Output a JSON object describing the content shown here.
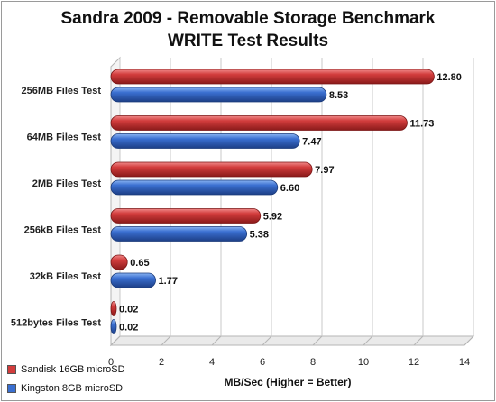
{
  "chart_data": {
    "type": "bar",
    "orientation": "horizontal",
    "title": "Sandra 2009 - Removable Storage Benchmark",
    "subtitle": "WRITE Test Results",
    "xlabel": "MB/Sec (Higher = Better)",
    "ylabel": "",
    "xlim": [
      0,
      14
    ],
    "xticks": [
      "0",
      "2",
      "4",
      "6",
      "8",
      "10",
      "12",
      "14"
    ],
    "categories": [
      "256MB Files Test",
      "64MB Files Test",
      "2MB Files Test",
      "256kB Files Test",
      "32kB Files Test",
      "512bytes Files Test"
    ],
    "series": [
      {
        "name": "Sandisk 16GB microSD",
        "color": "#d23c3c",
        "values": [
          12.8,
          11.73,
          7.97,
          5.92,
          0.65,
          0.02
        ]
      },
      {
        "name": "Kingston 8GB microSD",
        "color": "#3a6fd0",
        "values": [
          8.53,
          7.47,
          6.6,
          5.38,
          1.77,
          0.02
        ]
      }
    ],
    "grid": true,
    "legend_position": "bottom-left"
  }
}
